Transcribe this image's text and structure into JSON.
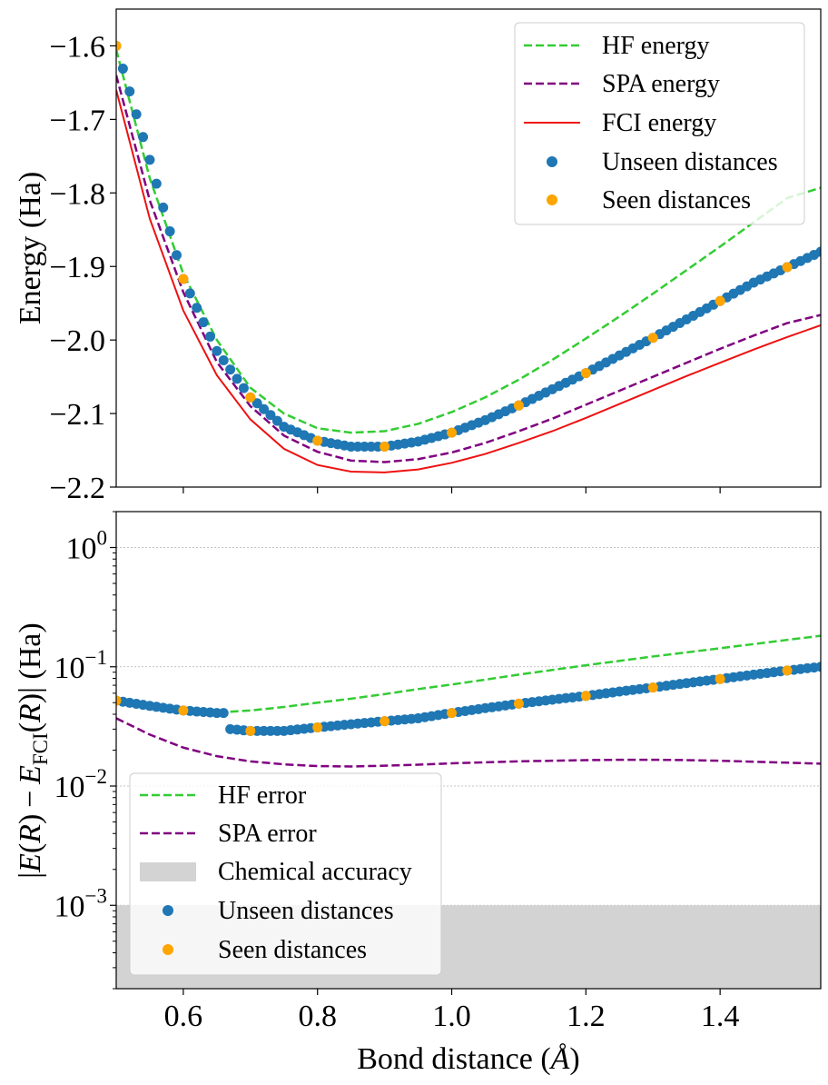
{
  "colors": {
    "hf": "#33cc33",
    "spa": "#800080",
    "fci": "#ee1111",
    "unseen": "#1f77b4",
    "seen": "#ffa500",
    "chem": "#d3d3d3",
    "grid": "#b0b0b0"
  },
  "chart_data": [
    {
      "type": "line",
      "ylabel": "Energy (Ha)",
      "xlim": [
        0.5,
        1.55
      ],
      "ylim": [
        -2.2,
        -1.55
      ],
      "yticks": [
        -2.2,
        -2.1,
        -2.0,
        -1.9,
        -1.8,
        -1.7,
        -1.6
      ],
      "ytick_labels": [
        "−2.2",
        "−2.1",
        "−2.0",
        "−1.9",
        "−1.8",
        "−1.7",
        "−1.6"
      ],
      "legend": {
        "location": "top-right",
        "entries": [
          "HF energy",
          "SPA energy",
          "FCI energy",
          "Unseen distances",
          "Seen distances"
        ]
      },
      "series": [
        {
          "name": "HF energy",
          "style": "dashed",
          "x": [
            0.5,
            0.55,
            0.6,
            0.65,
            0.7,
            0.75,
            0.8,
            0.85,
            0.9,
            0.95,
            1.0,
            1.05,
            1.1,
            1.15,
            1.2,
            1.25,
            1.3,
            1.35,
            1.4,
            1.45,
            1.5,
            1.55
          ],
          "y": [
            -1.605,
            -1.78,
            -1.91,
            -2.0,
            -2.065,
            -2.1,
            -2.12,
            -2.126,
            -2.124,
            -2.114,
            -2.098,
            -2.078,
            -2.054,
            -2.027,
            -1.998,
            -1.968,
            -1.937,
            -1.905,
            -1.873,
            -1.84,
            -1.807,
            -1.793
          ]
        },
        {
          "name": "SPA energy",
          "style": "dashed",
          "x": [
            0.5,
            0.55,
            0.6,
            0.65,
            0.7,
            0.75,
            0.8,
            0.85,
            0.9,
            0.95,
            1.0,
            1.05,
            1.1,
            1.15,
            1.2,
            1.25,
            1.3,
            1.35,
            1.4,
            1.45,
            1.5,
            1.55
          ],
          "y": [
            -1.64,
            -1.81,
            -1.935,
            -2.03,
            -2.09,
            -2.13,
            -2.152,
            -2.164,
            -2.166,
            -2.162,
            -2.153,
            -2.14,
            -2.124,
            -2.107,
            -2.088,
            -2.069,
            -2.05,
            -2.031,
            -2.012,
            -1.994,
            -1.977,
            -1.966
          ]
        },
        {
          "name": "FCI energy",
          "style": "solid",
          "x": [
            0.5,
            0.55,
            0.6,
            0.65,
            0.7,
            0.75,
            0.8,
            0.85,
            0.9,
            0.95,
            1.0,
            1.05,
            1.1,
            1.15,
            1.2,
            1.25,
            1.3,
            1.35,
            1.4,
            1.45,
            1.5,
            1.55
          ],
          "y": [
            -1.66,
            -1.835,
            -1.96,
            -2.048,
            -2.108,
            -2.148,
            -2.17,
            -2.179,
            -2.18,
            -2.176,
            -2.167,
            -2.155,
            -2.14,
            -2.124,
            -2.106,
            -2.087,
            -2.068,
            -2.049,
            -2.031,
            -2.013,
            -1.996,
            -1.98
          ]
        },
        {
          "name": "Unseen distances",
          "style": "scatter",
          "x": [
            0.5,
            0.55,
            0.6,
            0.65,
            0.7,
            0.75,
            0.8,
            0.85,
            0.9,
            0.95,
            1.0,
            1.05,
            1.1,
            1.15,
            1.2,
            1.25,
            1.3,
            1.35,
            1.4,
            1.45,
            1.5,
            1.55
          ],
          "y": [
            -1.6,
            -1.755,
            -1.917,
            -2.015,
            -2.078,
            -2.118,
            -2.137,
            -2.145,
            -2.145,
            -2.138,
            -2.126,
            -2.109,
            -2.089,
            -2.067,
            -2.045,
            -2.021,
            -1.997,
            -1.972,
            -1.947,
            -1.922,
            -1.901,
            -1.88
          ]
        },
        {
          "name": "Seen distances",
          "style": "scatter",
          "x": [
            0.5,
            0.6,
            0.7,
            0.8,
            0.9,
            1.0,
            1.1,
            1.2,
            1.3,
            1.4,
            1.5
          ],
          "y": [
            -1.6,
            -1.917,
            -2.078,
            -2.137,
            -2.145,
            -2.126,
            -2.089,
            -2.045,
            -1.997,
            -1.947,
            -1.901
          ]
        }
      ]
    },
    {
      "type": "line",
      "xlabel": "Bond distance",
      "xlabel_unit": "Å",
      "ylabel_parts": [
        "|",
        "E",
        "(",
        "R",
        ") − ",
        "E",
        "FCI",
        "(",
        "R",
        ")| (Ha)"
      ],
      "yscale": "log",
      "xlim": [
        0.5,
        1.55
      ],
      "ylim": [
        0.0002,
        2.0
      ],
      "xticks": [
        0.6,
        0.8,
        1.0,
        1.2,
        1.4
      ],
      "xtick_labels": [
        "0.6",
        "0.8",
        "1.0",
        "1.2",
        "1.4"
      ],
      "yticks": [
        0.001,
        0.01,
        0.1,
        1
      ],
      "ytick_base": "10",
      "ytick_exponents": [
        "−3",
        "−2",
        "−1",
        "0"
      ],
      "grid": true,
      "legend": {
        "location": "bottom-left",
        "entries": [
          "HF error",
          "SPA error",
          "Chemical accuracy",
          "Unseen distances",
          "Seen distances"
        ]
      },
      "chemical_accuracy": [
        0,
        0.001
      ],
      "series": [
        {
          "name": "HF error",
          "style": "dashed",
          "x": [
            0.67,
            0.7,
            0.75,
            0.8,
            0.85,
            0.9,
            0.95,
            1.0,
            1.05,
            1.1,
            1.15,
            1.2,
            1.25,
            1.3,
            1.35,
            1.4,
            1.45,
            1.5,
            1.55
          ],
          "y": [
            0.042,
            0.043,
            0.046,
            0.05,
            0.054,
            0.059,
            0.065,
            0.071,
            0.078,
            0.086,
            0.094,
            0.103,
            0.112,
            0.122,
            0.132,
            0.143,
            0.155,
            0.168,
            0.182
          ]
        },
        {
          "name": "SPA error",
          "style": "dashed",
          "x": [
            0.5,
            0.55,
            0.6,
            0.65,
            0.7,
            0.75,
            0.8,
            0.85,
            0.9,
            0.95,
            1.0,
            1.05,
            1.1,
            1.15,
            1.2,
            1.25,
            1.3,
            1.35,
            1.4,
            1.45,
            1.5,
            1.55
          ],
          "y": [
            0.037,
            0.027,
            0.021,
            0.0178,
            0.0161,
            0.0152,
            0.0147,
            0.0146,
            0.0148,
            0.0151,
            0.0155,
            0.0158,
            0.0161,
            0.0163,
            0.0165,
            0.0166,
            0.0166,
            0.0165,
            0.0163,
            0.016,
            0.0157,
            0.0154
          ]
        },
        {
          "name": "Unseen distances",
          "style": "scatter",
          "x": [
            0.5,
            0.55,
            0.6,
            0.65,
            0.66,
            0.67,
            0.7,
            0.75,
            0.8,
            0.85,
            0.9,
            0.95,
            1.0,
            1.05,
            1.1,
            1.15,
            1.2,
            1.25,
            1.3,
            1.35,
            1.4,
            1.45,
            1.5,
            1.55
          ],
          "y": [
            0.052,
            0.047,
            0.043,
            0.041,
            0.041,
            0.03,
            0.029,
            0.029,
            0.031,
            0.033,
            0.035,
            0.037,
            0.041,
            0.045,
            0.049,
            0.053,
            0.057,
            0.062,
            0.067,
            0.073,
            0.079,
            0.086,
            0.093,
            0.1
          ]
        },
        {
          "name": "Seen distances",
          "style": "scatter",
          "x": [
            0.5,
            0.6,
            0.7,
            0.8,
            0.9,
            1.0,
            1.1,
            1.2,
            1.3,
            1.4,
            1.5
          ],
          "y": [
            0.052,
            0.043,
            0.029,
            0.031,
            0.035,
            0.041,
            0.049,
            0.057,
            0.067,
            0.079,
            0.093
          ]
        }
      ]
    }
  ]
}
